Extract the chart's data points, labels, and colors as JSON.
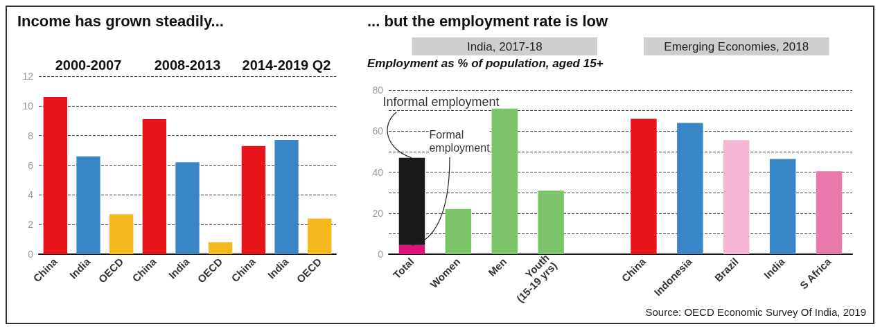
{
  "chart_data": [
    {
      "type": "bar",
      "title": "Income has grown steadily...",
      "categories": [
        "China",
        "India",
        "OECD",
        "China",
        "India",
        "OECD",
        "China",
        "India",
        "OECD"
      ],
      "values": [
        10.6,
        6.6,
        2.7,
        9.1,
        6.2,
        0.8,
        7.3,
        7.7,
        2.4
      ],
      "colors": [
        "#e8141c",
        "#3a87c8",
        "#f5b81c",
        "#e8141c",
        "#3a87c8",
        "#f5b81c",
        "#e8141c",
        "#3a87c8",
        "#f5b81c"
      ],
      "ylim": [
        0,
        12
      ],
      "yticks": [
        0,
        2,
        4,
        6,
        8,
        10,
        12
      ],
      "grid": "y",
      "annotations": [
        "2000-2007",
        "2008-2013",
        "2014-2019 Q2"
      ]
    },
    {
      "type": "bar",
      "title": "... but the employment rate is low",
      "subtitle": "Employment as % of population, aged 15+",
      "stacked": true,
      "categories": [
        "Total",
        "Women",
        "Men",
        "Youth\n(15-19 yrs)",
        null,
        "China",
        "Indonesia",
        "Brazil",
        "India",
        "S Africa"
      ],
      "series": [
        {
          "color": "#e0127e",
          "values": [
            4.5,
            null,
            null,
            null,
            null,
            null,
            null,
            null,
            null,
            null
          ]
        },
        {
          "colors": [
            "#1a1a1a",
            "#7cc46a",
            "#7cc46a",
            "#7cc46a",
            null,
            "#e8141c",
            "#3a87c8",
            "#f4b6d2",
            "#3a87c8",
            "#e879ab"
          ],
          "values": [
            42.5,
            22,
            71,
            31,
            null,
            66,
            64,
            55.6,
            46.4,
            40.4
          ]
        }
      ],
      "ylim": [
        0,
        80
      ],
      "yticks": [
        0,
        {
          "value": 10,
          "label": null
        },
        20,
        {
          "value": 30,
          "label": null
        },
        40,
        {
          "value": 50,
          "label": null
        },
        60,
        {
          "value": 70,
          "label": null
        },
        80
      ],
      "grid": "y",
      "annotations": [
        "India, 2017-18",
        "Emerging Economies, 2018",
        {
          "text": "Informal employment",
          "x": "Total",
          "y": 47
        },
        {
          "text": "Formal employment",
          "x": "Total",
          "y": 4.5
        },
        "Source: OECD Economic Survey Of India, 2019"
      ]
    }
  ]
}
